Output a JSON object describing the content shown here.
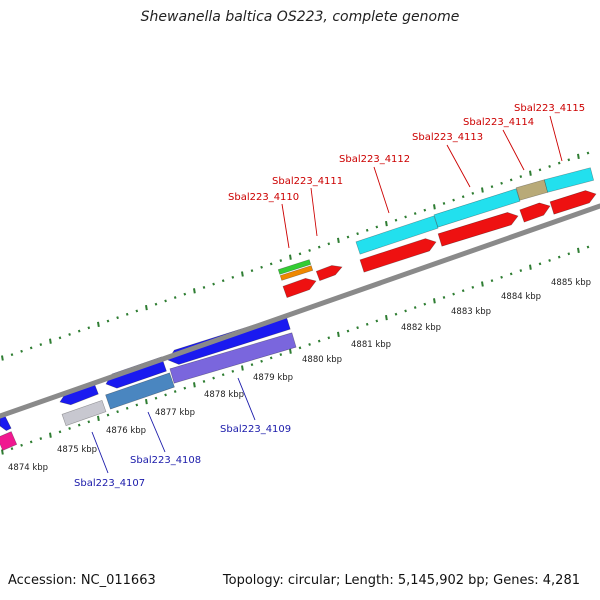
{
  "title": "Shewanella baltica OS223, complete genome",
  "footer": {
    "accession": "Accession: NC_011663",
    "summary": "Topology: circular; Length: 5,145,902 bp; Genes: 4,281"
  },
  "scale_labels": [
    "4874 kbp",
    "4875 kbp",
    "4876 kbp",
    "4877 kbp",
    "4878 kbp",
    "4879 kbp",
    "4880 kbp",
    "4881 kbp",
    "4882 kbp",
    "4883 kbp",
    "4884 kbp",
    "4885 kbp"
  ],
  "gene_labels": {
    "top": [
      "Sbal223_4110",
      "Sbal223_4111",
      "Sbal223_4112",
      "Sbal223_4113",
      "Sbal223_4114",
      "Sbal223_4115"
    ],
    "bottom": [
      "Sbal223_4107",
      "Sbal223_4108",
      "Sbal223_4109"
    ]
  },
  "colors": {
    "backbone": "#8a8a8a",
    "tick": "#2e7d32",
    "top_label": "#cc0000",
    "bottom_label": "#1a1aaa",
    "cyan": "#22e0ee",
    "red": "#ee1111",
    "blue": "#1a1af0",
    "purple": "#7a66dd",
    "steel": "#4a86c0",
    "gray": "#c8c8d0",
    "magenta": "#f01890",
    "green": "#33cc33",
    "orange": "#ee8800",
    "khaki": "#b8aa78"
  }
}
